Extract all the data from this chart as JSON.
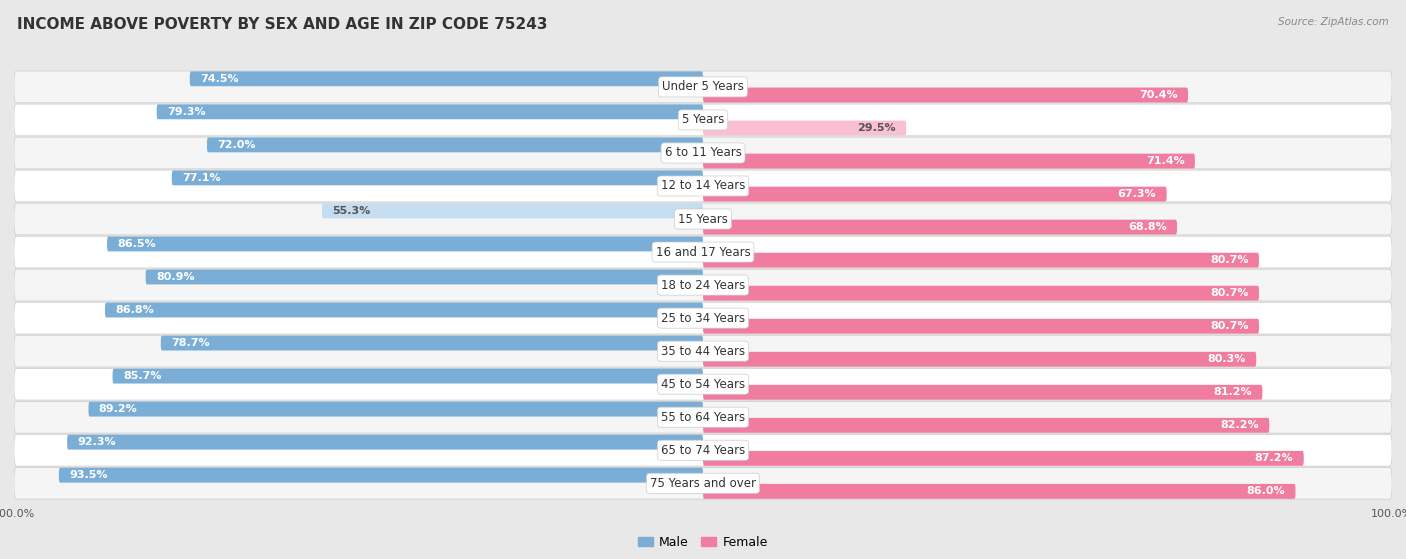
{
  "title": "INCOME ABOVE POVERTY BY SEX AND AGE IN ZIP CODE 75243",
  "source": "Source: ZipAtlas.com",
  "categories": [
    "Under 5 Years",
    "5 Years",
    "6 to 11 Years",
    "12 to 14 Years",
    "15 Years",
    "16 and 17 Years",
    "18 to 24 Years",
    "25 to 34 Years",
    "35 to 44 Years",
    "45 to 54 Years",
    "55 to 64 Years",
    "65 to 74 Years",
    "75 Years and over"
  ],
  "male_values": [
    74.5,
    79.3,
    72.0,
    77.1,
    55.3,
    86.5,
    80.9,
    86.8,
    78.7,
    85.7,
    89.2,
    92.3,
    93.5
  ],
  "female_values": [
    70.4,
    29.5,
    71.4,
    67.3,
    68.8,
    80.7,
    80.7,
    80.7,
    80.3,
    81.2,
    82.2,
    87.2,
    86.0
  ],
  "male_color": "#7aaed6",
  "male_color_light": "#c5ddf0",
  "female_color": "#f07ca0",
  "female_color_light": "#f9c0d4",
  "bg_color": "#e8e8e8",
  "row_color_odd": "#f5f5f5",
  "row_color_even": "#ffffff",
  "title_fontsize": 11,
  "source_fontsize": 7.5,
  "label_fontsize": 8.5,
  "value_fontsize": 8,
  "axis_label_fontsize": 8,
  "light_threshold": 60
}
